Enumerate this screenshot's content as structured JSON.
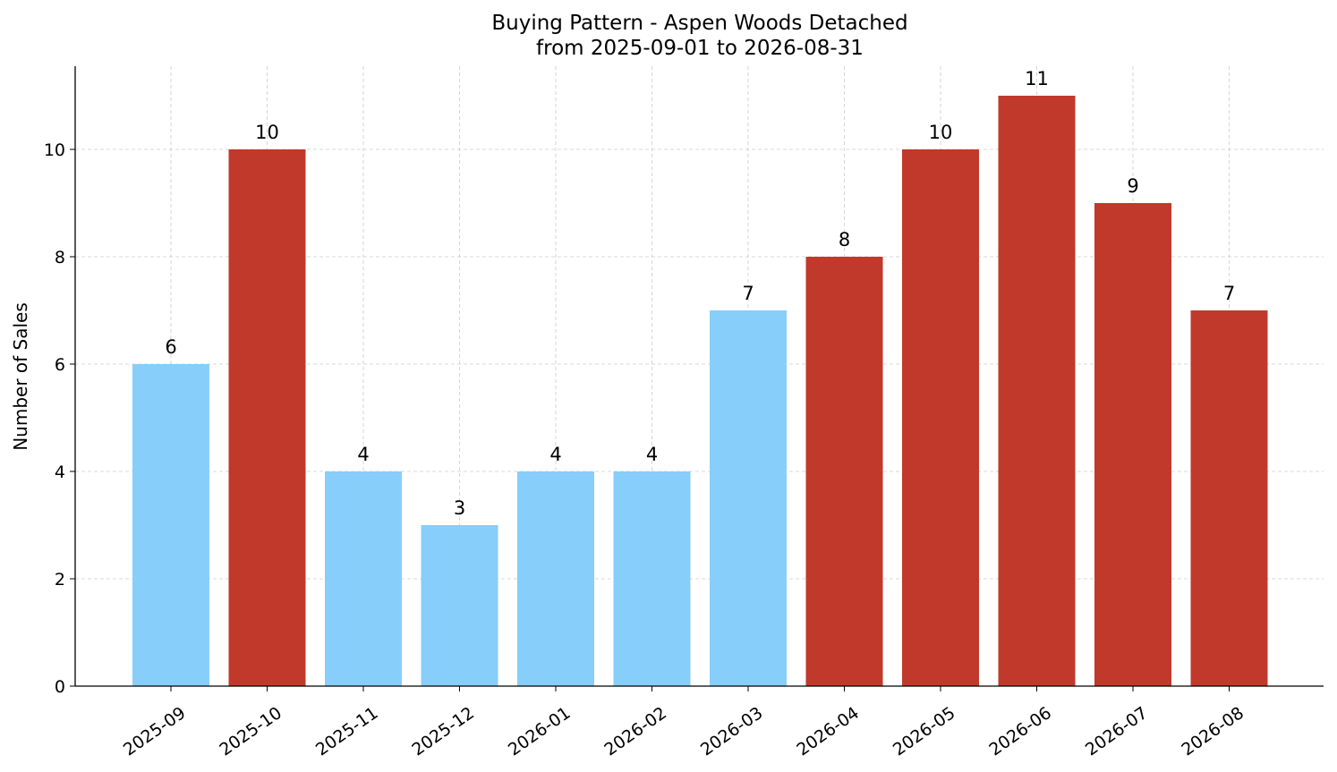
{
  "chart_data": {
    "type": "bar",
    "title": "Buying Pattern - Aspen Woods Detached",
    "subtitle": "from 2025-09-01 to 2026-08-31",
    "xlabel": "",
    "ylabel": "Number of Sales",
    "categories": [
      "2025-09",
      "2025-10",
      "2025-11",
      "2025-12",
      "2026-01",
      "2026-02",
      "2026-03",
      "2026-04",
      "2026-05",
      "2026-06",
      "2026-07",
      "2026-08"
    ],
    "values": [
      6,
      10,
      4,
      3,
      4,
      4,
      7,
      8,
      10,
      11,
      9,
      7
    ],
    "bar_colors": [
      "#87CEFA",
      "#C0392B",
      "#87CEFA",
      "#87CEFA",
      "#87CEFA",
      "#87CEFA",
      "#87CEFA",
      "#C0392B",
      "#C0392B",
      "#C0392B",
      "#C0392B",
      "#C0392B"
    ],
    "ylim": [
      0,
      11.55
    ],
    "yticks": [
      0,
      2,
      4,
      6,
      8,
      10
    ],
    "grid": true,
    "legend": "none"
  }
}
